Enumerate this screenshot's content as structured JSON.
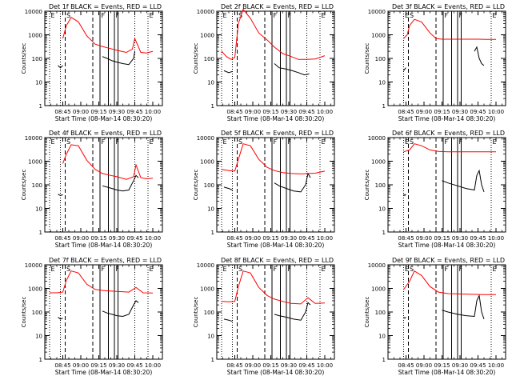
{
  "figure": {
    "xlabel": "Start Time (08-Mar-14 08:30:20)",
    "ylabel": "Counts/sec",
    "x_tick_labels": [
      "08:45",
      "09:00",
      "09:15",
      "09:30",
      "09:45",
      "10:00"
    ],
    "y_tick_labels": [
      "1",
      "10",
      "100",
      "1000",
      "10000"
    ]
  },
  "chart_data": [
    {
      "type": "line",
      "title": "Det 1f BLACK = Events, RED = LLD",
      "xlabel": "Start Time (08-Mar-14 08:30:20)",
      "ylabel": "Counts/sec",
      "yscale": "log",
      "ylim": [
        1,
        10000
      ],
      "x_ticks": [
        "08:45",
        "09:00",
        "09:15",
        "09:30",
        "09:45",
        "10:00"
      ],
      "flags": [
        "E",
        "S",
        "F",
        "F",
        "E"
      ],
      "series": [
        {
          "name": "BLACK",
          "color": "#000000",
          "x": [
            "08:41",
            "08:43",
            "08:45",
            "08:45",
            "08:50",
            "09:00",
            "09:10",
            "09:13",
            "09:15",
            "09:18",
            "09:22",
            "09:26",
            "09:30",
            "09:35",
            "09:40",
            "09:44",
            "09:45",
            "09:47",
            "09:49"
          ],
          "y": [
            50,
            40,
            50,
            null,
            null,
            null,
            null,
            null,
            null,
            120,
            100,
            80,
            70,
            60,
            55,
            100,
            200,
            null,
            null
          ]
        },
        {
          "name": "RED",
          "color": "#ff0000",
          "x": [
            "08:45",
            "08:48",
            "08:52",
            "08:58",
            "09:05",
            "09:12",
            "09:18",
            "09:25",
            "09:30",
            "09:38",
            "09:43",
            "09:45",
            "09:50",
            "09:55",
            "10:00"
          ],
          "y": [
            700,
            2500,
            5500,
            3500,
            900,
            400,
            320,
            260,
            220,
            180,
            250,
            700,
            180,
            170,
            200
          ]
        }
      ],
      "markers": {
        "dotted": [
          "08:34",
          "08:43",
          "09:45",
          "09:56"
        ],
        "dashed": [
          "08:47",
          "09:10"
        ],
        "solid": [
          "09:16",
          "09:23",
          "09:28",
          "09:31"
        ]
      }
    },
    {
      "type": "line",
      "title": "Det 2f BLACK = Events, RED = LLD",
      "xlabel": "Start Time (08-Mar-14 08:30:20)",
      "ylabel": "Counts/sec",
      "yscale": "log",
      "ylim": [
        1,
        10000
      ],
      "x_ticks": [
        "08:45",
        "09:00",
        "09:15",
        "09:30",
        "09:45",
        "10:00"
      ],
      "flags": [
        "E",
        "S",
        "F",
        "F",
        "E"
      ],
      "series": [
        {
          "name": "BLACK",
          "color": "#000000",
          "x": [
            "08:36",
            "08:40",
            "08:43",
            "08:45",
            "09:10",
            "09:15",
            "09:18",
            "09:22",
            "09:28",
            "09:33",
            "09:38",
            "09:43",
            "09:47"
          ],
          "y": [
            30,
            25,
            28,
            null,
            null,
            null,
            60,
            40,
            35,
            30,
            25,
            20,
            22
          ]
        },
        {
          "name": "RED",
          "color": "#ff0000",
          "x": [
            "08:34",
            "08:38",
            "08:42",
            "08:45",
            "08:48",
            "08:52",
            "08:58",
            "09:05",
            "09:12",
            "09:18",
            "09:25",
            "09:32",
            "09:38",
            "09:45",
            "09:52",
            "10:00"
          ],
          "y": [
            200,
            120,
            90,
            110,
            3000,
            12000,
            5000,
            1200,
            600,
            300,
            160,
            120,
            90,
            90,
            95,
            130
          ]
        }
      ],
      "markers": {
        "dotted": [
          "08:34",
          "08:43",
          "09:45",
          "09:56"
        ],
        "dashed": [
          "08:47",
          "09:10"
        ],
        "solid": [
          "09:16",
          "09:23",
          "09:28",
          "09:31"
        ]
      }
    },
    {
      "type": "line",
      "title": "Det 3f BLACK = Events, RED = LLD",
      "xlabel": "Start Time (08-Mar-14 08:30:20)",
      "ylabel": "Counts/sec",
      "yscale": "log",
      "ylim": [
        1,
        10000
      ],
      "x_ticks": [
        "08:45",
        "09:00",
        "09:15",
        "09:30",
        "09:45",
        "10:00"
      ],
      "flags": [
        "E",
        "S",
        "F",
        "F",
        "E"
      ],
      "series": [
        {
          "name": "BLACK",
          "color": "#000000",
          "x": [
            "08:43",
            "08:44",
            "08:45",
            "09:40",
            "09:42",
            "09:44",
            "09:46",
            "09:48",
            "09:50"
          ],
          "y": [
            30,
            35,
            40,
            null,
            200,
            300,
            100,
            60,
            50
          ]
        },
        {
          "name": "RED",
          "color": "#ff0000",
          "x": [
            "08:43",
            "08:46",
            "08:48",
            "08:52",
            "08:58",
            "09:05",
            "09:10",
            "09:15",
            "09:25",
            "09:35",
            "09:45",
            "09:52",
            "10:00"
          ],
          "y": [
            700,
            1000,
            2500,
            4500,
            3500,
            1200,
            700,
            650,
            650,
            650,
            650,
            640,
            640
          ]
        }
      ],
      "markers": {
        "dotted": [
          "08:43",
          "09:56"
        ],
        "dashed": [
          "08:47",
          "09:10"
        ],
        "solid": [
          "09:16",
          "09:23",
          "09:28",
          "09:31"
        ]
      }
    },
    {
      "type": "line",
      "title": "Det 4f BLACK = Events, RED = LLD",
      "xlabel": "Start Time (08-Mar-14 08:30:20)",
      "ylabel": "Counts/sec",
      "yscale": "log",
      "ylim": [
        1,
        10000
      ],
      "x_ticks": [
        "08:45",
        "09:00",
        "09:15",
        "09:30",
        "09:45",
        "10:00"
      ],
      "flags": [
        "E",
        "S",
        "F",
        "F",
        "E"
      ],
      "series": [
        {
          "name": "BLACK",
          "color": "#000000",
          "x": [
            "08:41",
            "08:43",
            "08:45",
            "09:15",
            "09:18",
            "09:22",
            "09:26",
            "09:30",
            "09:35",
            "09:40",
            "09:44",
            "09:46",
            "09:48"
          ],
          "y": [
            40,
            35,
            38,
            null,
            90,
            80,
            70,
            60,
            55,
            60,
            150,
            250,
            200
          ]
        },
        {
          "name": "RED",
          "color": "#ff0000",
          "x": [
            "08:45",
            "08:48",
            "08:52",
            "08:58",
            "09:05",
            "09:12",
            "09:18",
            "09:25",
            "09:30",
            "09:38",
            "09:44",
            "09:46",
            "09:50",
            "09:55",
            "10:00"
          ],
          "y": [
            800,
            2000,
            5000,
            4500,
            1100,
            450,
            300,
            250,
            220,
            170,
            220,
            700,
            200,
            180,
            190
          ]
        }
      ],
      "markers": {
        "dotted": [
          "08:34",
          "08:43",
          "09:45",
          "09:56"
        ],
        "dashed": [
          "08:47",
          "09:10"
        ],
        "solid": [
          "09:16",
          "09:23",
          "09:28",
          "09:31"
        ]
      }
    },
    {
      "type": "line",
      "title": "Det 5f BLACK = Events, RED = LLD",
      "xlabel": "Start Time (08-Mar-14 08:30:20)",
      "ylabel": "Counts/sec",
      "yscale": "log",
      "ylim": [
        1,
        10000
      ],
      "x_ticks": [
        "08:45",
        "09:00",
        "09:15",
        "09:30",
        "09:45",
        "10:00"
      ],
      "flags": [
        "E",
        "S",
        "F",
        "F",
        "E"
      ],
      "series": [
        {
          "name": "BLACK",
          "color": "#000000",
          "x": [
            "08:36",
            "08:40",
            "08:43",
            "08:45",
            "09:15",
            "09:18",
            "09:22",
            "09:28",
            "09:34",
            "09:40",
            "09:44",
            "09:46",
            "09:48"
          ],
          "y": [
            80,
            70,
            60,
            null,
            null,
            120,
            90,
            70,
            55,
            50,
            100,
            300,
            200
          ]
        },
        {
          "name": "RED",
          "color": "#ff0000",
          "x": [
            "08:34",
            "08:40",
            "08:45",
            "08:48",
            "08:52",
            "08:58",
            "09:05",
            "09:12",
            "09:18",
            "09:25",
            "09:32",
            "09:40",
            "09:46",
            "09:52",
            "10:00"
          ],
          "y": [
            450,
            400,
            380,
            1200,
            5500,
            4500,
            1200,
            550,
            400,
            330,
            300,
            290,
            300,
            310,
            380
          ]
        }
      ],
      "markers": {
        "dotted": [
          "08:34",
          "08:43",
          "09:45",
          "09:56"
        ],
        "dashed": [
          "08:47",
          "09:10"
        ],
        "solid": [
          "09:16",
          "09:23",
          "09:28",
          "09:31"
        ]
      }
    },
    {
      "type": "line",
      "title": "Det 6f BLACK = Events, RED = LLD",
      "xlabel": "Start Time (08-Mar-14 08:30:20)",
      "ylabel": "Counts/sec",
      "yscale": "log",
      "ylim": [
        1,
        10000
      ],
      "x_ticks": [
        "08:45",
        "09:00",
        "09:15",
        "09:30",
        "09:45",
        "10:00"
      ],
      "flags": [
        "E",
        "S",
        "F",
        "F",
        "E"
      ],
      "series": [
        {
          "name": "BLACK",
          "color": "#000000",
          "x": [
            "08:43",
            "08:44",
            "08:45",
            "09:13",
            "09:15",
            "09:20",
            "09:28",
            "09:35",
            "09:42",
            "09:44",
            "09:46",
            "09:48",
            "09:50"
          ],
          "y": [
            40,
            35,
            40,
            null,
            150,
            120,
            90,
            70,
            60,
            250,
            400,
            100,
            50
          ]
        },
        {
          "name": "RED",
          "color": "#ff0000",
          "x": [
            "08:43",
            "08:48",
            "08:52",
            "08:58",
            "09:05",
            "09:12",
            "09:20",
            "09:30",
            "09:40",
            "09:50",
            "10:00"
          ],
          "y": [
            2500,
            3000,
            5500,
            4500,
            3000,
            2600,
            2500,
            2500,
            2500,
            2500,
            2500
          ]
        }
      ],
      "markers": {
        "dotted": [
          "08:43",
          "09:56"
        ],
        "dashed": [
          "08:47",
          "09:10"
        ],
        "solid": [
          "09:16",
          "09:23",
          "09:28",
          "09:31"
        ]
      }
    },
    {
      "type": "line",
      "title": "Det 7f BLACK = Events, RED = LLD",
      "xlabel": "Start Time (08-Mar-14 08:30:20)",
      "ylabel": "Counts/sec",
      "yscale": "log",
      "ylim": [
        1,
        10000
      ],
      "x_ticks": [
        "08:45",
        "09:00",
        "09:15",
        "09:30",
        "09:45",
        "10:00"
      ],
      "flags": [
        "E",
        "S",
        "F",
        "F",
        "E"
      ],
      "series": [
        {
          "name": "BLACK",
          "color": "#000000",
          "x": [
            "08:41",
            "08:43",
            "08:45",
            "09:15",
            "09:18",
            "09:22",
            "09:26",
            "09:30",
            "09:35",
            "09:40",
            "09:44",
            "09:46",
            "09:48"
          ],
          "y": [
            60,
            50,
            55,
            null,
            110,
            90,
            80,
            70,
            65,
            80,
            200,
            300,
            250
          ]
        },
        {
          "name": "RED",
          "color": "#ff0000",
          "x": [
            "08:34",
            "08:40",
            "08:45",
            "08:48",
            "08:52",
            "08:58",
            "09:05",
            "09:12",
            "09:20",
            "09:30",
            "09:40",
            "09:46",
            "09:52",
            "10:00"
          ],
          "y": [
            650,
            650,
            700,
            2200,
            5500,
            4500,
            1500,
            900,
            800,
            750,
            700,
            1100,
            650,
            640
          ]
        }
      ],
      "markers": {
        "dotted": [
          "08:34",
          "08:43",
          "09:45",
          "09:56"
        ],
        "dashed": [
          "08:47",
          "09:10"
        ],
        "solid": [
          "09:16",
          "09:23",
          "09:28",
          "09:31"
        ]
      }
    },
    {
      "type": "line",
      "title": "Det 8f BLACK = Events, RED = LLD",
      "xlabel": "Start Time (08-Mar-14 08:30:20)",
      "ylabel": "Counts/sec",
      "yscale": "log",
      "ylim": [
        1,
        10000
      ],
      "x_ticks": [
        "08:45",
        "09:00",
        "09:15",
        "09:30",
        "09:45",
        "10:00"
      ],
      "flags": [
        "E",
        "S",
        "F",
        "F",
        "E"
      ],
      "series": [
        {
          "name": "BLACK",
          "color": "#000000",
          "x": [
            "08:36",
            "08:40",
            "08:43",
            "08:45",
            "09:15",
            "09:18",
            "09:22",
            "09:28",
            "09:34",
            "09:40",
            "09:44",
            "09:46",
            "09:48"
          ],
          "y": [
            50,
            45,
            40,
            null,
            null,
            80,
            70,
            60,
            50,
            45,
            100,
            250,
            200
          ]
        },
        {
          "name": "RED",
          "color": "#ff0000",
          "x": [
            "08:34",
            "08:40",
            "08:45",
            "08:48",
            "08:52",
            "08:58",
            "09:05",
            "09:12",
            "09:18",
            "09:25",
            "09:32",
            "09:40",
            "09:46",
            "09:52",
            "10:00"
          ],
          "y": [
            280,
            270,
            280,
            1200,
            5500,
            4500,
            1100,
            500,
            350,
            280,
            230,
            220,
            400,
            230,
            240
          ]
        }
      ],
      "markers": {
        "dotted": [
          "08:34",
          "08:43",
          "09:45",
          "09:56"
        ],
        "dashed": [
          "08:47",
          "09:10"
        ],
        "solid": [
          "09:16",
          "09:23",
          "09:28",
          "09:31"
        ]
      }
    },
    {
      "type": "line",
      "title": "Det 9f BLACK = Events, RED = LLD",
      "xlabel": "Start Time (08-Mar-14 08:30:20)",
      "ylabel": "Counts/sec",
      "yscale": "log",
      "ylim": [
        1,
        10000
      ],
      "x_ticks": [
        "08:45",
        "09:00",
        "09:15",
        "09:30",
        "09:45",
        "10:00"
      ],
      "flags": [
        "E",
        "S",
        "F",
        "F",
        "E"
      ],
      "series": [
        {
          "name": "BLACK",
          "color": "#000000",
          "x": [
            "08:43",
            "08:44",
            "08:45",
            "09:13",
            "09:15",
            "09:20",
            "09:28",
            "09:35",
            "09:42",
            "09:44",
            "09:46",
            "09:48",
            "09:50"
          ],
          "y": [
            60,
            55,
            60,
            null,
            120,
            100,
            80,
            70,
            65,
            300,
            500,
            100,
            50
          ]
        },
        {
          "name": "RED",
          "color": "#ff0000",
          "x": [
            "08:43",
            "08:48",
            "08:52",
            "08:58",
            "09:05",
            "09:12",
            "09:20",
            "09:30",
            "09:40",
            "09:50",
            "10:00"
          ],
          "y": [
            900,
            2000,
            5500,
            3500,
            1200,
            700,
            600,
            580,
            560,
            550,
            550
          ]
        }
      ],
      "markers": {
        "dotted": [
          "08:43",
          "09:56"
        ],
        "dashed": [
          "08:47",
          "09:10"
        ],
        "solid": [
          "09:16",
          "09:23",
          "09:28",
          "09:31"
        ]
      }
    }
  ]
}
